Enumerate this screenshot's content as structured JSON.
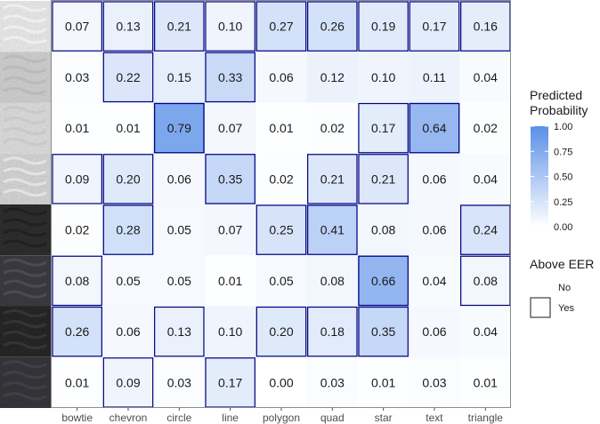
{
  "chart_data": {
    "type": "heatmap",
    "categories": [
      "bowtie",
      "chevron",
      "circle",
      "line",
      "polygon",
      "quad",
      "star",
      "text",
      "triangle"
    ],
    "row_count": 8,
    "values": [
      [
        0.07,
        0.13,
        0.21,
        0.1,
        0.27,
        0.26,
        0.19,
        0.17,
        0.16
      ],
      [
        0.03,
        0.22,
        0.15,
        0.33,
        0.06,
        0.12,
        0.1,
        0.11,
        0.04
      ],
      [
        0.01,
        0.01,
        0.79,
        0.07,
        0.01,
        0.02,
        0.17,
        0.64,
        0.02
      ],
      [
        0.09,
        0.2,
        0.06,
        0.35,
        0.02,
        0.21,
        0.21,
        0.06,
        0.04
      ],
      [
        0.02,
        0.28,
        0.05,
        0.07,
        0.25,
        0.41,
        0.08,
        0.06,
        0.24
      ],
      [
        0.08,
        0.05,
        0.05,
        0.01,
        0.05,
        0.08,
        0.66,
        0.04,
        0.08
      ],
      [
        0.26,
        0.06,
        0.13,
        0.1,
        0.2,
        0.18,
        0.35,
        0.06,
        0.04
      ],
      [
        0.01,
        0.09,
        0.03,
        0.17,
        0.0,
        0.03,
        0.01,
        0.03,
        0.01
      ]
    ],
    "above_eer": [
      [
        true,
        true,
        true,
        true,
        true,
        true,
        true,
        true,
        true
      ],
      [
        false,
        true,
        false,
        true,
        false,
        false,
        false,
        false,
        false
      ],
      [
        false,
        false,
        true,
        false,
        false,
        false,
        true,
        true,
        false
      ],
      [
        true,
        true,
        false,
        true,
        false,
        true,
        true,
        false,
        false
      ],
      [
        false,
        true,
        false,
        false,
        true,
        true,
        false,
        false,
        true
      ],
      [
        true,
        false,
        false,
        false,
        false,
        false,
        true,
        false,
        true
      ],
      [
        true,
        false,
        true,
        false,
        true,
        true,
        true,
        false,
        false
      ],
      [
        false,
        true,
        false,
        true,
        false,
        false,
        false,
        false,
        false
      ]
    ],
    "row_images": [
      "footwear-print-1",
      "footwear-print-2",
      "footwear-print-3",
      "footwear-print-4",
      "footwear-print-5",
      "footwear-print-6",
      "footwear-print-7",
      "footwear-print-8"
    ],
    "fill_legend": {
      "title_lines": [
        "Predicted",
        "Probability"
      ],
      "ticks": [
        "1.00",
        "0.75",
        "0.50",
        "0.25",
        "0.00"
      ],
      "tick_values": [
        1.0,
        0.75,
        0.5,
        0.25,
        0.0
      ],
      "range": [
        0,
        1
      ]
    },
    "outline_legend": {
      "title": "Above EER",
      "items": [
        "No",
        "Yes"
      ]
    },
    "colors": {
      "low": "#ffffff",
      "high": "#5b8fe8",
      "outline": "#000080",
      "panel_border": "#8c8c8c",
      "text": "#1a1a1a",
      "tick": "#4d4d4d"
    }
  }
}
